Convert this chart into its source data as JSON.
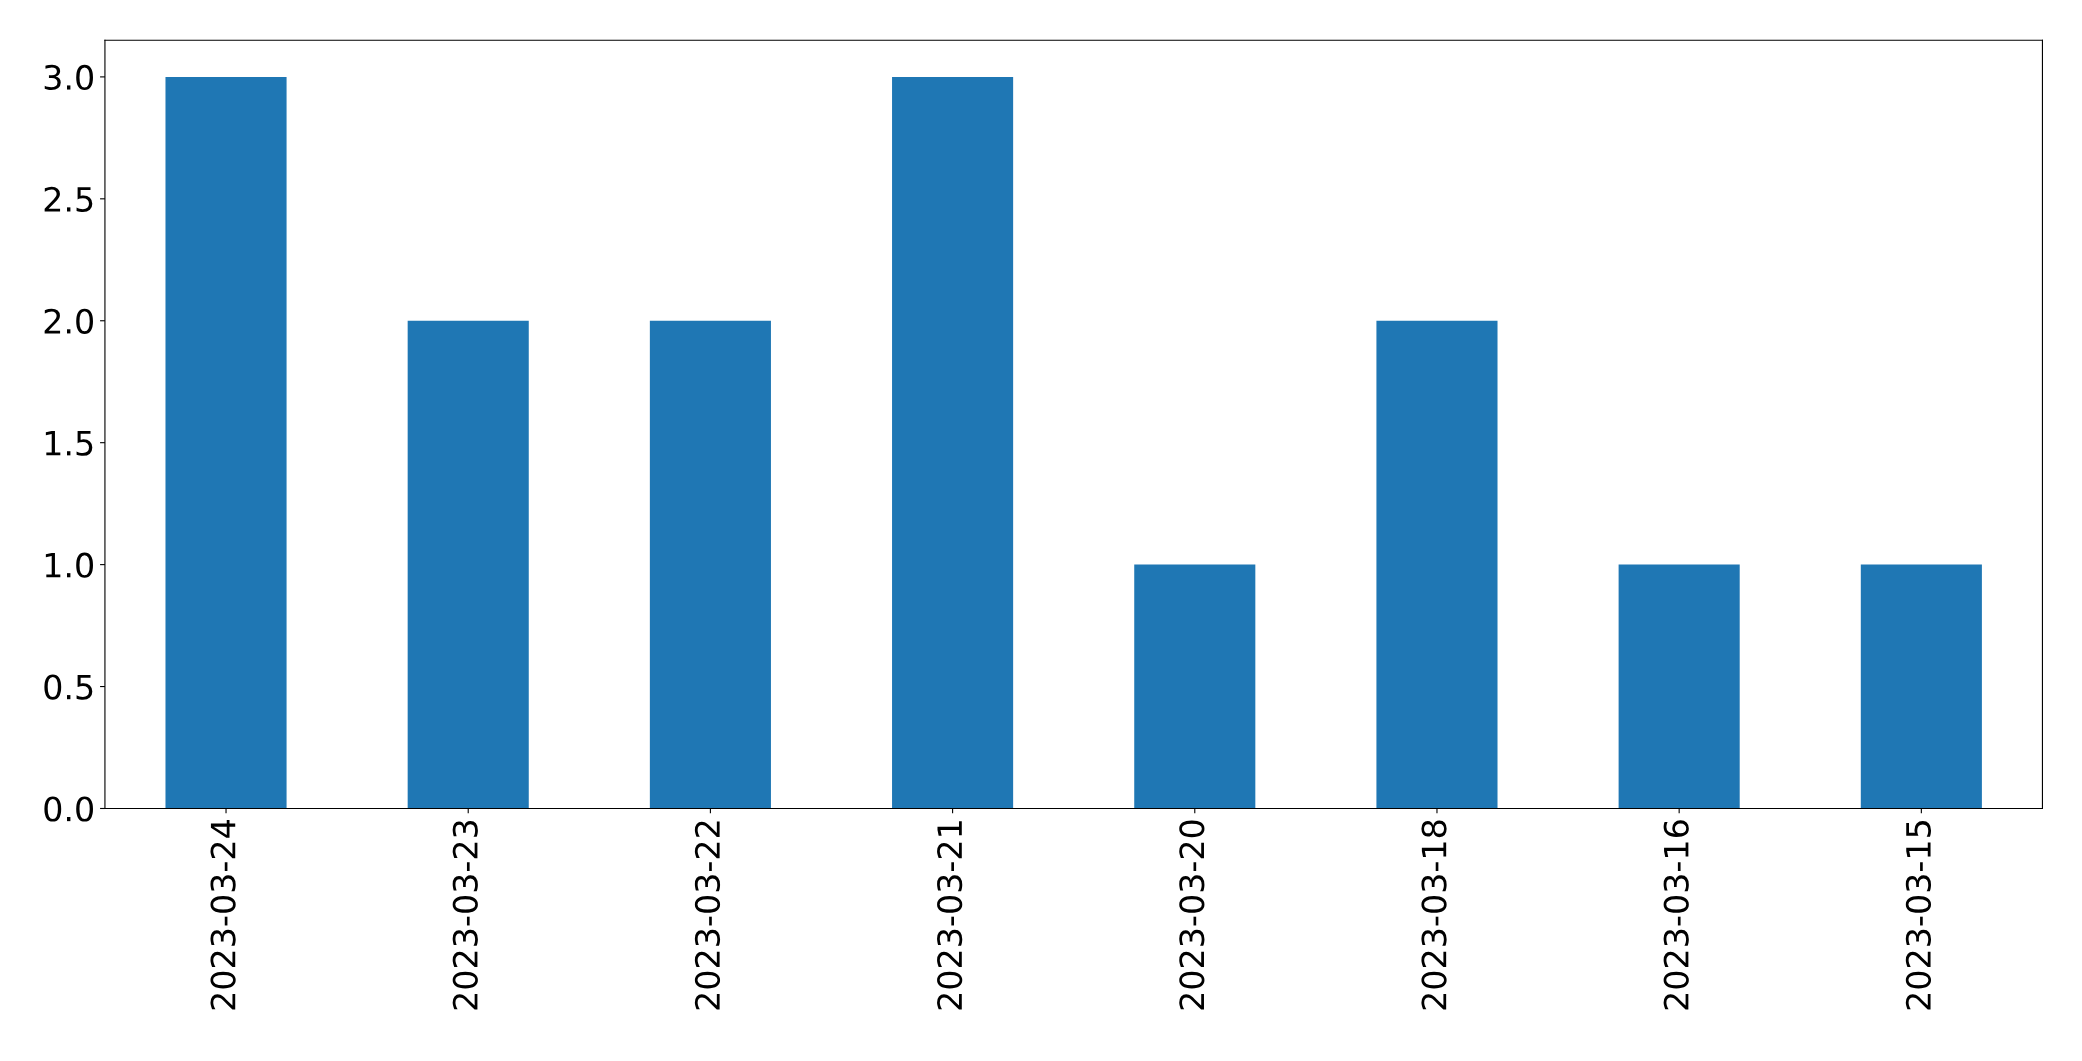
{
  "chart_data": {
    "type": "bar",
    "categories": [
      "2023-03-24",
      "2023-03-23",
      "2023-03-22",
      "2023-03-21",
      "2023-03-20",
      "2023-03-18",
      "2023-03-16",
      "2023-03-15"
    ],
    "values": [
      3,
      2,
      2,
      3,
      1,
      2,
      1,
      1
    ],
    "color": "#1f77b4",
    "ylim": [
      0,
      3.15
    ],
    "yticks": [
      {
        "value": 0,
        "label": "0.0"
      },
      {
        "value": 0.5,
        "label": "0.5"
      },
      {
        "value": 1,
        "label": "1.0"
      },
      {
        "value": 1.5,
        "label": "1.5"
      },
      {
        "value": 2,
        "label": "2.0"
      },
      {
        "value": 2.5,
        "label": "2.5"
      },
      {
        "value": 3,
        "label": "3.0"
      }
    ],
    "grid": false
  }
}
